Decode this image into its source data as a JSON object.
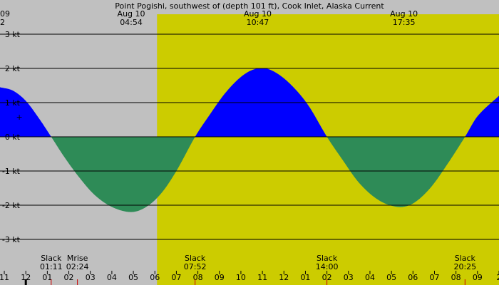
{
  "chart_data": {
    "type": "area",
    "title": "Point Pogishi, southwest of (depth 101 ft), Cook Inlet, Alaska Current",
    "ylabel": "kt",
    "ylim": [
      -3.3,
      3.5
    ],
    "y_ticks": [
      {
        "value": 3,
        "label": "3 kt"
      },
      {
        "value": 2,
        "label": "2 kt"
      },
      {
        "value": 1,
        "label": "1 kt"
      },
      {
        "value": 0,
        "label": "0 kt"
      },
      {
        "value": -1,
        "label": "-1 kt"
      },
      {
        "value": -2,
        "label": "-2 kt"
      },
      {
        "value": -3,
        "label": "-3 kt"
      }
    ],
    "x_range_hours": [
      22.8,
      46.0
    ],
    "x_ticks": [
      {
        "hour": 23,
        "label": "11"
      },
      {
        "hour": 24,
        "label": "12"
      },
      {
        "hour": 25,
        "label": "01"
      },
      {
        "hour": 26,
        "label": "02"
      },
      {
        "hour": 27,
        "label": "03"
      },
      {
        "hour": 28,
        "label": "04"
      },
      {
        "hour": 29,
        "label": "05"
      },
      {
        "hour": 30,
        "label": "06"
      },
      {
        "hour": 31,
        "label": "07"
      },
      {
        "hour": 32,
        "label": "08"
      },
      {
        "hour": 33,
        "label": "09"
      },
      {
        "hour": 34,
        "label": "10"
      },
      {
        "hour": 35,
        "label": "11"
      },
      {
        "hour": 36,
        "label": "12"
      },
      {
        "hour": 37,
        "label": "01"
      },
      {
        "hour": 38,
        "label": "02"
      },
      {
        "hour": 39,
        "label": "03"
      },
      {
        "hour": 40,
        "label": "04"
      },
      {
        "hour": 41,
        "label": "05"
      },
      {
        "hour": 42,
        "label": "06"
      },
      {
        "hour": 43,
        "label": "07"
      },
      {
        "hour": 44,
        "label": "08"
      },
      {
        "hour": 45,
        "label": "09"
      },
      {
        "hour": 46,
        "label": "2"
      }
    ],
    "daylight": {
      "start_hour": 30.1,
      "end_hour": 46.0
    },
    "current_knots": [
      {
        "hour": 22.8,
        "speed": 1.45
      },
      {
        "hour": 23.4,
        "speed": 1.35
      },
      {
        "hour": 24.0,
        "speed": 1.05
      },
      {
        "hour": 24.6,
        "speed": 0.55
      },
      {
        "hour": 25.18,
        "speed": 0.0
      },
      {
        "hour": 25.8,
        "speed": -0.6
      },
      {
        "hour": 26.5,
        "speed": -1.2
      },
      {
        "hour": 27.2,
        "speed": -1.7
      },
      {
        "hour": 28.0,
        "speed": -2.05
      },
      {
        "hour": 28.9,
        "speed": -2.2
      },
      {
        "hour": 29.6,
        "speed": -2.05
      },
      {
        "hour": 30.3,
        "speed": -1.65
      },
      {
        "hour": 31.0,
        "speed": -1.0
      },
      {
        "hour": 31.87,
        "speed": 0.0
      },
      {
        "hour": 32.5,
        "speed": 0.6
      },
      {
        "hour": 33.3,
        "speed": 1.3
      },
      {
        "hour": 34.1,
        "speed": 1.8
      },
      {
        "hour": 34.78,
        "speed": 2.0
      },
      {
        "hour": 35.4,
        "speed": 1.95
      },
      {
        "hour": 36.2,
        "speed": 1.6
      },
      {
        "hour": 37.1,
        "speed": 0.95
      },
      {
        "hour": 38.0,
        "speed": 0.0
      },
      {
        "hour": 38.7,
        "speed": -0.65
      },
      {
        "hour": 39.5,
        "speed": -1.35
      },
      {
        "hour": 40.4,
        "speed": -1.85
      },
      {
        "hour": 41.3,
        "speed": -2.05
      },
      {
        "hour": 42.0,
        "speed": -1.95
      },
      {
        "hour": 42.8,
        "speed": -1.5
      },
      {
        "hour": 43.6,
        "speed": -0.8
      },
      {
        "hour": 44.42,
        "speed": 0.0
      },
      {
        "hour": 45.0,
        "speed": 0.6
      },
      {
        "hour": 46.0,
        "speed": 1.2
      }
    ],
    "top_labels": [
      {
        "hour": 22.8,
        "line1": "09",
        "line2": "2",
        "anchor": "start"
      },
      {
        "hour": 28.9,
        "line1": "Aug 10",
        "line2": "04:54",
        "anchor": "middle"
      },
      {
        "hour": 34.78,
        "line1": "Aug 10",
        "line2": "10:47",
        "anchor": "middle"
      },
      {
        "hour": 41.58,
        "line1": "Aug 10",
        "line2": "17:35",
        "anchor": "middle"
      }
    ],
    "bottom_labels": [
      {
        "hour": 25.18,
        "line1": "Slack",
        "line2": "01:11",
        "anchor": "middle"
      },
      {
        "hour": 26.4,
        "line1": "Mrise",
        "line2": "02:24",
        "anchor": "middle"
      },
      {
        "hour": 31.87,
        "line1": "Slack",
        "line2": "07:52",
        "anchor": "middle"
      },
      {
        "hour": 38.0,
        "line1": "Slack",
        "line2": "14:00",
        "anchor": "middle"
      },
      {
        "hour": 44.42,
        "line1": "Slack",
        "line2": "20:25",
        "anchor": "middle"
      }
    ],
    "event_markers": [
      {
        "hour": 25.18
      },
      {
        "hour": 26.4
      },
      {
        "hour": 31.87
      },
      {
        "hour": 38.0
      },
      {
        "hour": 44.42
      }
    ],
    "current_marker_hour": 23.7,
    "now_marker_value": 0.58,
    "colors": {
      "night": "#c0c0c0",
      "day": "#cccc00",
      "flood": "#0000ff",
      "ebb": "#2e8b57",
      "grid": "#000000",
      "event_tick": "#cc0000"
    }
  }
}
